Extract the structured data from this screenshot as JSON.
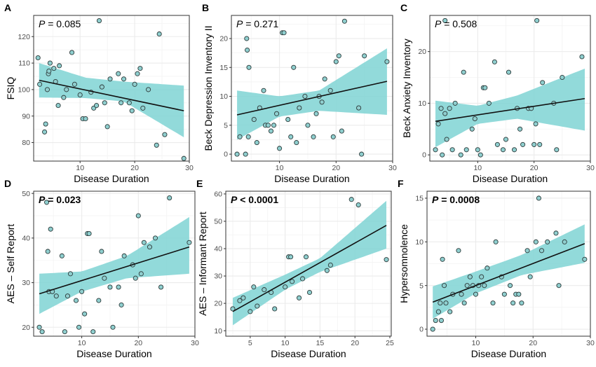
{
  "colors": {
    "ribbon": "#7fd3d3",
    "point_fill": "#8fcfcf",
    "point_stroke": "#2d3a3a",
    "line": "#111111",
    "grid": "#ebebeb",
    "panel_border": "#333333"
  },
  "chart_data": [
    {
      "type": "scatter",
      "panel": "A",
      "xlabel": "Disease Duration",
      "ylabel": "FSIQ",
      "annotation": "P = 0.085",
      "annotation_bold": false,
      "xlim": [
        1.5,
        30
      ],
      "ylim": [
        73,
        128
      ],
      "xticks": [
        10,
        20,
        30
      ],
      "yticks": [
        80,
        90,
        100,
        110,
        120
      ],
      "fit": {
        "x0": 2.5,
        "y0": 103.5,
        "x1": 29,
        "y1": 92
      },
      "ci": {
        "lower": [
          [
            2.5,
            97
          ],
          [
            11,
            96.8
          ],
          [
            18,
            95.5
          ],
          [
            29,
            82
          ]
        ],
        "upper": [
          [
            2.5,
            110
          ],
          [
            11,
            104.5
          ],
          [
            18,
            103
          ],
          [
            29,
            101.5
          ]
        ]
      },
      "points": [
        [
          2.3,
          112
        ],
        [
          2.6,
          102
        ],
        [
          3.5,
          84
        ],
        [
          3.7,
          87
        ],
        [
          4.0,
          100
        ],
        [
          4.2,
          106
        ],
        [
          4.3,
          107
        ],
        [
          4.5,
          110
        ],
        [
          5.2,
          108
        ],
        [
          5.5,
          103
        ],
        [
          6.0,
          94
        ],
        [
          6.2,
          109
        ],
        [
          7,
          97
        ],
        [
          7.5,
          100
        ],
        [
          8.5,
          114
        ],
        [
          9,
          102
        ],
        [
          10,
          98
        ],
        [
          10.5,
          89
        ],
        [
          11,
          89
        ],
        [
          12,
          99
        ],
        [
          12.5,
          93
        ],
        [
          13.5,
          126
        ],
        [
          13,
          94
        ],
        [
          14,
          101
        ],
        [
          14.5,
          95
        ],
        [
          15,
          86
        ],
        [
          15.5,
          104
        ],
        [
          17,
          106
        ],
        [
          17.5,
          95
        ],
        [
          18,
          104
        ],
        [
          19,
          95
        ],
        [
          19.5,
          92
        ],
        [
          20,
          102
        ],
        [
          20.5,
          106
        ],
        [
          21,
          108
        ],
        [
          21.5,
          93
        ],
        [
          22.5,
          100
        ],
        [
          24,
          79
        ],
        [
          24.5,
          121
        ],
        [
          25.5,
          83
        ],
        [
          29,
          74
        ]
      ]
    },
    {
      "type": "scatter",
      "panel": "B",
      "xlabel": "Disease Duration",
      "ylabel": "Beck Depression Inventory II",
      "annotation": "P = 0.271",
      "annotation_bold": false,
      "xlim": [
        1.5,
        30
      ],
      "ylim": [
        -1.2,
        24
      ],
      "xticks": [
        10,
        20,
        30
      ],
      "yticks": [
        0,
        5,
        10,
        15,
        20
      ],
      "fit": {
        "x0": 2.5,
        "y0": 6.8,
        "x1": 29,
        "y1": 12.6
      },
      "ci": {
        "lower": [
          [
            2.5,
            2.5
          ],
          [
            10,
            6.5
          ],
          [
            17,
            7.5
          ],
          [
            29,
            6.8
          ]
        ],
        "upper": [
          [
            2.5,
            11
          ],
          [
            10,
            10
          ],
          [
            17,
            11
          ],
          [
            29,
            18.3
          ]
        ]
      },
      "points": [
        [
          2.5,
          0
        ],
        [
          3,
          3
        ],
        [
          4.0,
          0
        ],
        [
          4.2,
          20
        ],
        [
          4.3,
          18
        ],
        [
          4.6,
          15
        ],
        [
          4.5,
          3
        ],
        [
          5.5,
          6
        ],
        [
          6,
          2
        ],
        [
          6.5,
          8
        ],
        [
          7.2,
          11
        ],
        [
          7.5,
          5
        ],
        [
          8,
          5
        ],
        [
          8.5,
          4
        ],
        [
          9,
          5
        ],
        [
          9.5,
          7
        ],
        [
          10,
          1
        ],
        [
          10.5,
          21
        ],
        [
          10.8,
          21
        ],
        [
          11.5,
          6
        ],
        [
          12,
          3
        ],
        [
          12.5,
          15
        ],
        [
          13,
          2
        ],
        [
          13.5,
          8
        ],
        [
          14.5,
          10
        ],
        [
          15,
          5
        ],
        [
          16,
          3
        ],
        [
          16.5,
          7
        ],
        [
          17,
          10
        ],
        [
          17.5,
          9
        ],
        [
          18,
          13
        ],
        [
          19,
          11
        ],
        [
          19.5,
          3
        ],
        [
          20,
          16
        ],
        [
          20.5,
          17
        ],
        [
          21,
          4
        ],
        [
          21.5,
          23
        ],
        [
          24,
          8
        ],
        [
          24.5,
          0
        ],
        [
          25,
          17
        ],
        [
          29,
          16
        ]
      ]
    },
    {
      "type": "scatter",
      "panel": "C",
      "xlabel": "Disease Duration",
      "ylabel": "Beck Anxiety Inventory",
      "annotation": "P = 0.508",
      "annotation_bold": false,
      "xlim": [
        1.5,
        30
      ],
      "ylim": [
        -1.2,
        27
      ],
      "xticks": [
        10,
        20,
        30
      ],
      "yticks": [
        0,
        10,
        20
      ],
      "fit": {
        "x0": 2.5,
        "y0": 6.5,
        "x1": 29,
        "y1": 10.9
      },
      "ci": {
        "lower": [
          [
            2.5,
            1.5
          ],
          [
            10,
            6
          ],
          [
            17,
            7
          ],
          [
            29,
            4.7
          ]
        ],
        "upper": [
          [
            2.5,
            10.5
          ],
          [
            10,
            9.5
          ],
          [
            17,
            11.5
          ],
          [
            29,
            16.7
          ]
        ]
      },
      "points": [
        [
          2.5,
          1
        ],
        [
          3,
          6
        ],
        [
          3.5,
          9
        ],
        [
          3.7,
          0
        ],
        [
          4.2,
          26
        ],
        [
          4.2,
          8
        ],
        [
          4.5,
          3
        ],
        [
          5,
          9
        ],
        [
          5.5,
          1
        ],
        [
          6,
          10
        ],
        [
          7,
          0
        ],
        [
          7.5,
          16
        ],
        [
          8,
          1
        ],
        [
          9,
          5
        ],
        [
          9.5,
          7
        ],
        [
          10,
          1
        ],
        [
          10.5,
          0
        ],
        [
          11,
          13
        ],
        [
          11.3,
          13
        ],
        [
          12,
          10
        ],
        [
          13,
          18
        ],
        [
          13.5,
          2
        ],
        [
          14.5,
          1
        ],
        [
          15,
          3
        ],
        [
          15.5,
          16
        ],
        [
          16.5,
          1
        ],
        [
          17,
          9
        ],
        [
          17.5,
          5
        ],
        [
          18,
          2
        ],
        [
          19,
          9
        ],
        [
          19.5,
          9
        ],
        [
          20,
          2
        ],
        [
          20.3,
          6
        ],
        [
          20.5,
          26
        ],
        [
          21,
          2
        ],
        [
          21.5,
          14
        ],
        [
          23.5,
          10
        ],
        [
          24,
          1
        ],
        [
          25,
          15
        ],
        [
          28.5,
          19
        ]
      ]
    },
    {
      "type": "scatter",
      "panel": "D",
      "xlabel": "Disease Duration",
      "ylabel": "AES – Self Report",
      "annotation": "P = 0.023",
      "annotation_bold": true,
      "xlim": [
        1.5,
        30
      ],
      "ylim": [
        18,
        50.5
      ],
      "xticks": [
        10,
        20,
        30
      ],
      "yticks": [
        20,
        30,
        40,
        50
      ],
      "fit": {
        "x0": 2.5,
        "y0": 27.5,
        "x1": 29,
        "y1": 38
      },
      "ci": {
        "lower": [
          [
            2.5,
            23
          ],
          [
            10,
            28
          ],
          [
            18,
            31
          ],
          [
            29,
            32
          ]
        ],
        "upper": [
          [
            2.5,
            32
          ],
          [
            10,
            32.5
          ],
          [
            18,
            36
          ],
          [
            29,
            44.7
          ]
        ]
      },
      "points": [
        [
          2.5,
          20
        ],
        [
          3,
          19
        ],
        [
          3.8,
          48
        ],
        [
          4,
          37
        ],
        [
          4.2,
          28
        ],
        [
          4.5,
          42
        ],
        [
          4.8,
          28
        ],
        [
          5.5,
          27
        ],
        [
          6.5,
          36
        ],
        [
          7,
          19
        ],
        [
          7.5,
          27
        ],
        [
          8,
          32
        ],
        [
          9,
          26
        ],
        [
          9.5,
          20
        ],
        [
          10,
          28
        ],
        [
          10.5,
          23
        ],
        [
          11,
          41
        ],
        [
          11.3,
          41
        ],
        [
          12,
          19
        ],
        [
          13,
          26
        ],
        [
          13.5,
          37
        ],
        [
          14,
          31
        ],
        [
          15,
          29
        ],
        [
          15.5,
          20
        ],
        [
          16.5,
          29
        ],
        [
          17,
          25
        ],
        [
          17.5,
          36
        ],
        [
          19,
          34
        ],
        [
          19.5,
          31
        ],
        [
          20,
          45
        ],
        [
          20.5,
          32
        ],
        [
          21,
          39
        ],
        [
          22,
          38
        ],
        [
          23,
          40
        ],
        [
          24,
          29
        ],
        [
          25.5,
          49
        ],
        [
          29,
          39
        ]
      ]
    },
    {
      "type": "scatter",
      "panel": "E",
      "xlabel": "Disease Duration",
      "ylabel": "AES – Informant Report",
      "annotation": "P < 0.0001",
      "annotation_bold": true,
      "xlim": [
        1.5,
        25.2
      ],
      "ylim": [
        8,
        61
      ],
      "xticks": [
        5,
        10,
        15,
        20,
        25
      ],
      "yticks": [
        10,
        20,
        30,
        40,
        50,
        60
      ],
      "fit": {
        "x0": 2.5,
        "y0": 17,
        "x1": 24.5,
        "y1": 48.5
      },
      "ci": {
        "lower": [
          [
            2.5,
            12
          ],
          [
            10,
            25
          ],
          [
            15,
            31.5
          ],
          [
            24.5,
            40
          ]
        ],
        "upper": [
          [
            2.5,
            22
          ],
          [
            10,
            30.5
          ],
          [
            15,
            36.5
          ],
          [
            24.5,
            57.5
          ]
        ]
      },
      "points": [
        [
          2.5,
          18
        ],
        [
          3.5,
          21
        ],
        [
          4,
          22
        ],
        [
          5,
          17
        ],
        [
          5.5,
          26
        ],
        [
          6,
          19
        ],
        [
          7,
          25
        ],
        [
          8,
          24
        ],
        [
          8.5,
          18
        ],
        [
          10,
          26
        ],
        [
          10.5,
          37
        ],
        [
          10.8,
          37
        ],
        [
          11,
          28
        ],
        [
          12,
          22
        ],
        [
          12.5,
          29
        ],
        [
          13,
          37
        ],
        [
          13.5,
          24
        ],
        [
          16,
          32
        ],
        [
          16.5,
          34
        ],
        [
          19.5,
          58
        ],
        [
          20.5,
          56
        ],
        [
          24.5,
          36
        ]
      ]
    },
    {
      "type": "scatter",
      "panel": "F",
      "xlabel": "Disease Duration",
      "ylabel": "Hypersomnolence",
      "annotation": "P = 0.0008",
      "annotation_bold": true,
      "xlim": [
        1.5,
        30
      ],
      "ylim": [
        -0.8,
        15.8
      ],
      "xticks": [
        10,
        20,
        30
      ],
      "yticks": [
        0,
        5,
        10,
        15
      ],
      "fit": {
        "x0": 2.5,
        "y0": 3.1,
        "x1": 29,
        "y1": 9.8
      },
      "ci": {
        "lower": [
          [
            2.5,
            1.2
          ],
          [
            10,
            4.1
          ],
          [
            18,
            6.2
          ],
          [
            29,
            7.6
          ]
        ],
        "upper": [
          [
            2.5,
            4.9
          ],
          [
            10,
            6.6
          ],
          [
            18,
            8.5
          ],
          [
            29,
            12
          ]
        ]
      },
      "points": [
        [
          2.5,
          0
        ],
        [
          3,
          1
        ],
        [
          3.5,
          2
        ],
        [
          3.8,
          3
        ],
        [
          4,
          1
        ],
        [
          4.2,
          8
        ],
        [
          4.5,
          5
        ],
        [
          4.8,
          3
        ],
        [
          5.5,
          2
        ],
        [
          6,
          4
        ],
        [
          7,
          9
        ],
        [
          7.5,
          4
        ],
        [
          8,
          3
        ],
        [
          8.5,
          5
        ],
        [
          9,
          6
        ],
        [
          9.5,
          5
        ],
        [
          10,
          4
        ],
        [
          10.5,
          5
        ],
        [
          11,
          6
        ],
        [
          11.5,
          5
        ],
        [
          12,
          7
        ],
        [
          13,
          3
        ],
        [
          13.5,
          10
        ],
        [
          14.5,
          6
        ],
        [
          15,
          4
        ],
        [
          16,
          5
        ],
        [
          16.5,
          3
        ],
        [
          17,
          4
        ],
        [
          17.5,
          4
        ],
        [
          18,
          3
        ],
        [
          19,
          9
        ],
        [
          19.5,
          6
        ],
        [
          20.5,
          10
        ],
        [
          21,
          15
        ],
        [
          21.5,
          9
        ],
        [
          22.5,
          10
        ],
        [
          24,
          11
        ],
        [
          24.5,
          5
        ],
        [
          25.5,
          10
        ],
        [
          29,
          8
        ]
      ]
    }
  ]
}
